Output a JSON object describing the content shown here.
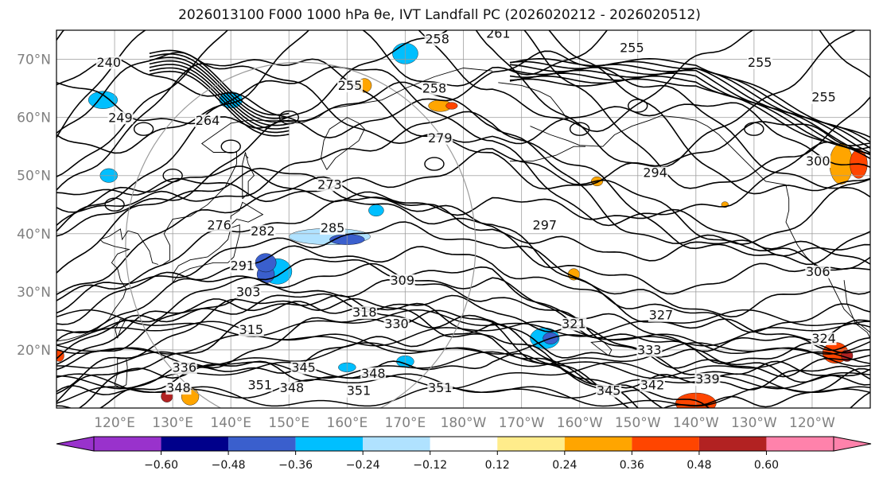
{
  "title": "2026013100 F000 1000 hPa θe, IVT Landfall PC (2026020212 - 2026020512)",
  "map": {
    "lat_ticks": [
      "20°N",
      "30°N",
      "40°N",
      "50°N",
      "60°N",
      "70°N"
    ],
    "lon_ticks": [
      "120°E",
      "130°E",
      "140°E",
      "150°E",
      "160°E",
      "170°E",
      "180°W",
      "170°W",
      "160°W",
      "150°W",
      "140°W",
      "130°W",
      "120°W"
    ],
    "lat_range": [
      10,
      75
    ],
    "lon_range_east_deg": [
      110,
      250
    ],
    "contour_labels": [
      {
        "text": "261",
        "lon": 186.0,
        "lat": 74.0
      },
      {
        "text": "258",
        "lon": 175.5,
        "lat": 73.0
      },
      {
        "text": "255",
        "lon": 209.0,
        "lat": 71.5
      },
      {
        "text": "255",
        "lon": 231.0,
        "lat": 69.0
      },
      {
        "text": "258",
        "lon": 175.0,
        "lat": 64.5
      },
      {
        "text": "255",
        "lon": 160.5,
        "lat": 65.0
      },
      {
        "text": "255",
        "lon": 242.0,
        "lat": 63.0
      },
      {
        "text": "240",
        "lon": 119.0,
        "lat": 69.0
      },
      {
        "text": "249",
        "lon": 121.0,
        "lat": 59.5
      },
      {
        "text": "264",
        "lon": 136.0,
        "lat": 59.0
      },
      {
        "text": "279",
        "lon": 176.0,
        "lat": 56.0
      },
      {
        "text": "273",
        "lon": 157.0,
        "lat": 48.0
      },
      {
        "text": "294",
        "lon": 213.0,
        "lat": 50.0
      },
      {
        "text": "300",
        "lon": 241.0,
        "lat": 52.0
      },
      {
        "text": "276",
        "lon": 138.0,
        "lat": 41.0
      },
      {
        "text": "282",
        "lon": 145.5,
        "lat": 40.0
      },
      {
        "text": "285",
        "lon": 157.5,
        "lat": 40.5
      },
      {
        "text": "297",
        "lon": 194.0,
        "lat": 41.0
      },
      {
        "text": "291",
        "lon": 142.0,
        "lat": 34.0
      },
      {
        "text": "309",
        "lon": 169.5,
        "lat": 31.5
      },
      {
        "text": "303",
        "lon": 143.0,
        "lat": 29.5
      },
      {
        "text": "306",
        "lon": 241.0,
        "lat": 33.0
      },
      {
        "text": "318",
        "lon": 163.0,
        "lat": 26.0
      },
      {
        "text": "330",
        "lon": 168.5,
        "lat": 24.0
      },
      {
        "text": "321",
        "lon": 199.0,
        "lat": 24.0
      },
      {
        "text": "327",
        "lon": 214.0,
        "lat": 25.5
      },
      {
        "text": "315",
        "lon": 143.5,
        "lat": 23.0
      },
      {
        "text": "324",
        "lon": 242.0,
        "lat": 21.5
      },
      {
        "text": "333",
        "lon": 212.0,
        "lat": 19.5
      },
      {
        "text": "336",
        "lon": 132.0,
        "lat": 16.5
      },
      {
        "text": "345",
        "lon": 152.5,
        "lat": 16.5
      },
      {
        "text": "348",
        "lon": 164.5,
        "lat": 15.5
      },
      {
        "text": "339",
        "lon": 222.0,
        "lat": 14.5
      },
      {
        "text": "342",
        "lon": 212.5,
        "lat": 13.5
      },
      {
        "text": "351",
        "lon": 145.0,
        "lat": 13.5
      },
      {
        "text": "351",
        "lon": 176.0,
        "lat": 13.0
      },
      {
        "text": "348",
        "lon": 131.0,
        "lat": 13.0
      },
      {
        "text": "348",
        "lon": 150.5,
        "lat": 13.0
      },
      {
        "text": "351",
        "lon": 162.0,
        "lat": 12.5
      },
      {
        "text": "345",
        "lon": 205.0,
        "lat": 12.5
      }
    ]
  },
  "colorbar": {
    "tick_labels": [
      "−0.60",
      "−0.48",
      "−0.36",
      "−0.24",
      "−0.12",
      "0.12",
      "0.24",
      "0.36",
      "0.48",
      "0.60"
    ],
    "bounds": [
      -0.72,
      -0.6,
      -0.48,
      -0.36,
      -0.24,
      -0.12,
      0.12,
      0.24,
      0.36,
      0.48,
      0.6,
      0.72
    ],
    "colors": [
      "#9932CC",
      "#00008B",
      "#3A5FCD",
      "#00BFFF",
      "#B0E2FF",
      "#FFFFFF",
      "#FFEC8B",
      "#FFA500",
      "#FF4500",
      "#B22222",
      "#FF82AB"
    ],
    "under_color": "#9932CC",
    "over_color": "#FF82AB"
  },
  "colors": {
    "contour": "#000000",
    "grid": "#9a9a9a",
    "coast": "#000000"
  }
}
